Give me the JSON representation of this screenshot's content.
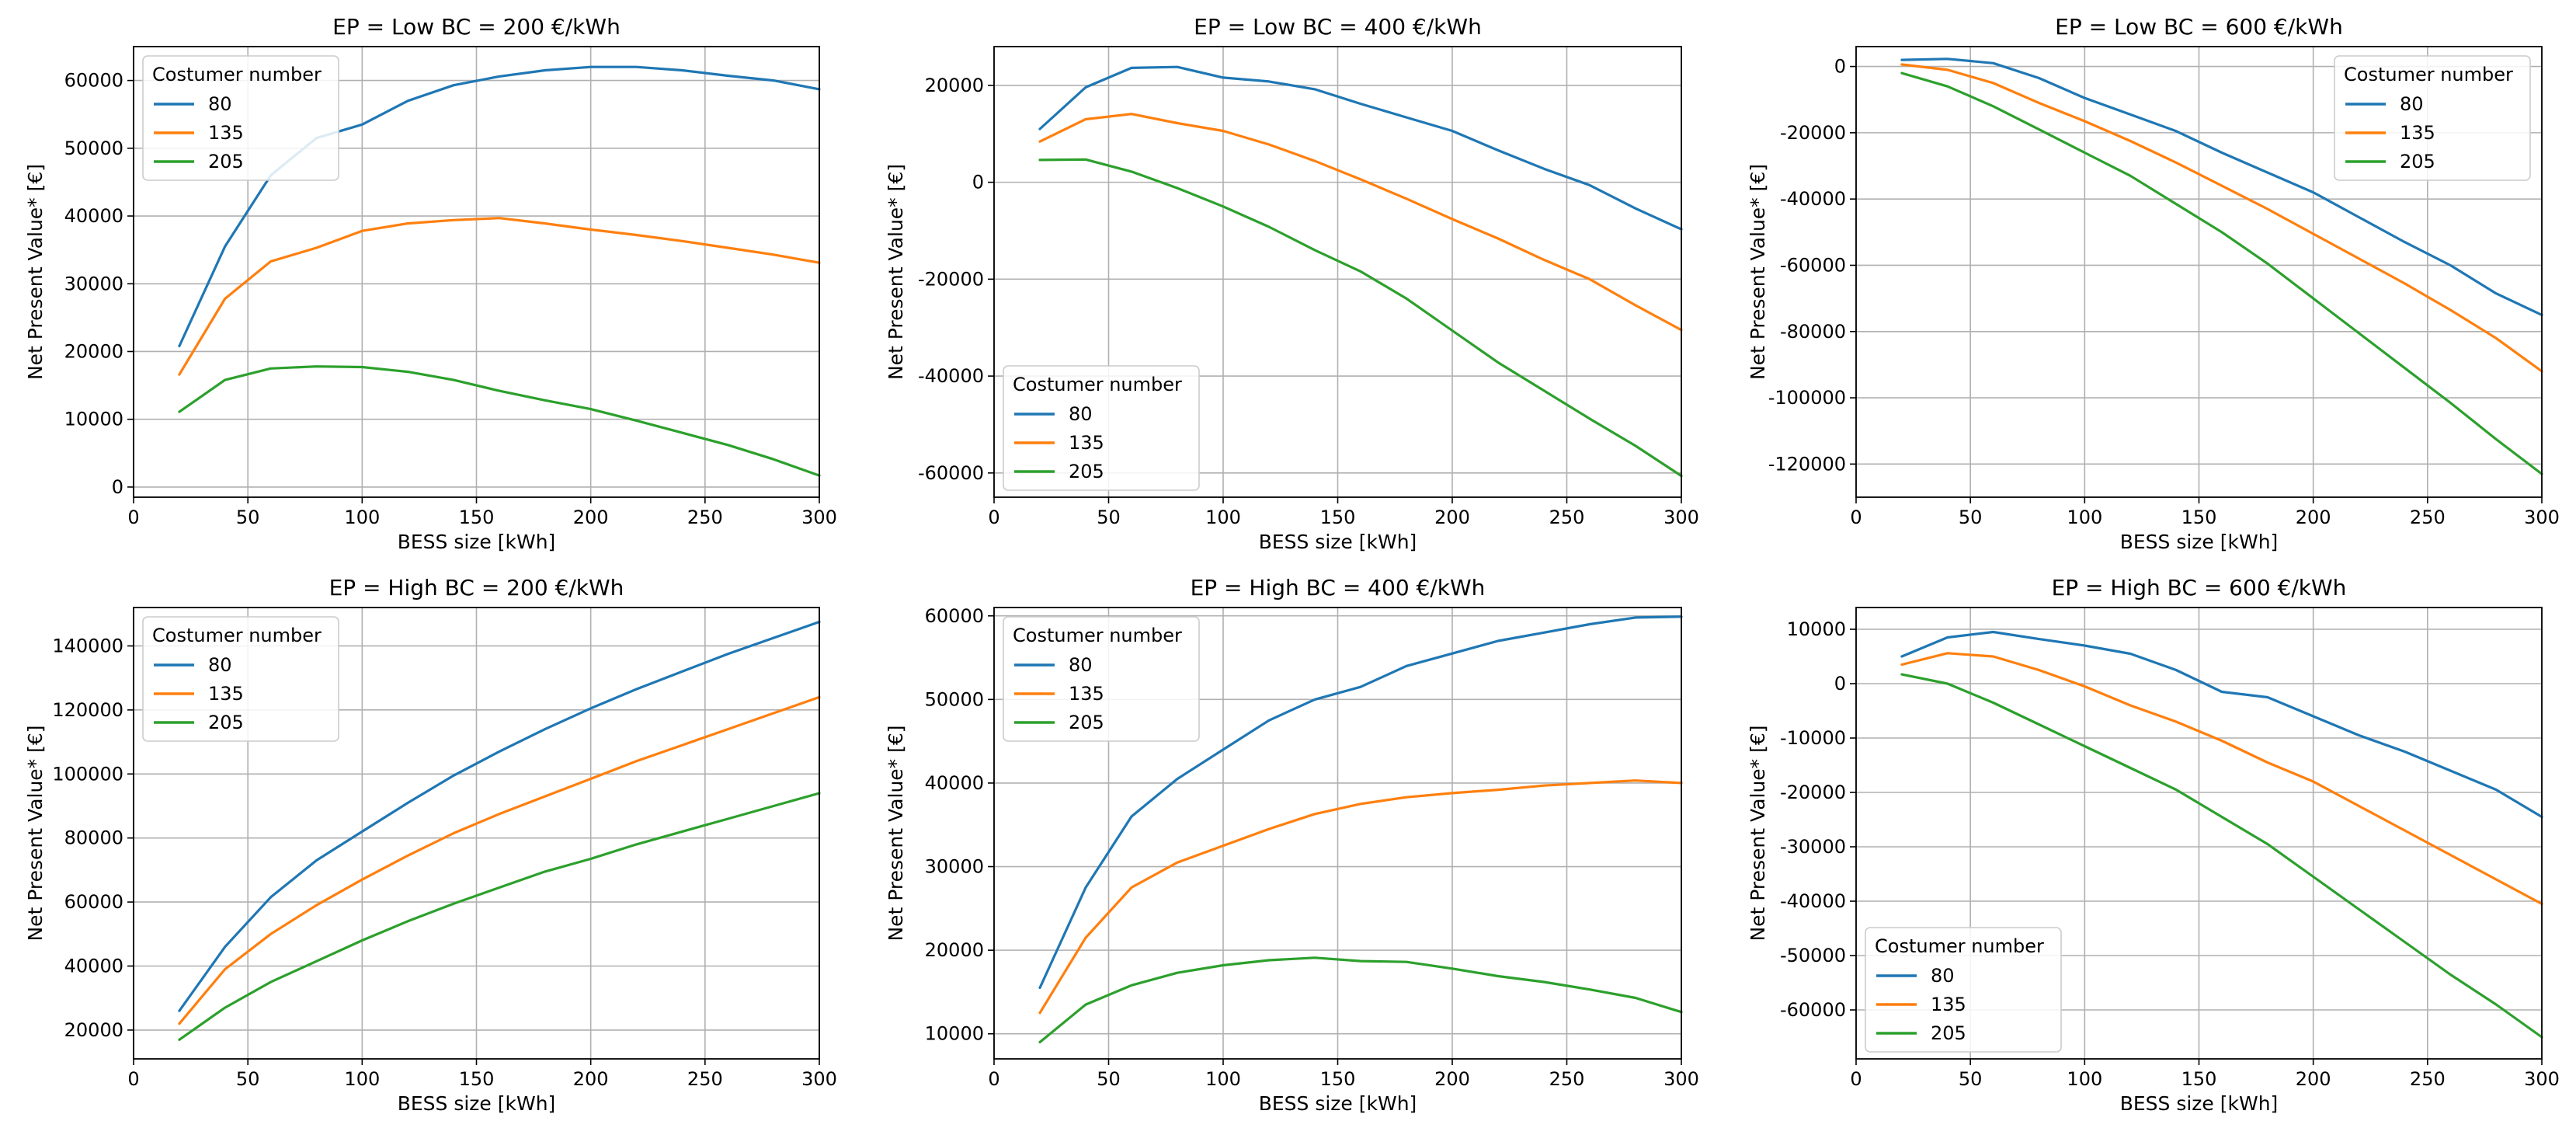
{
  "colors": {
    "80": "#1f77b4",
    "135": "#ff7f0e",
    "205": "#2ca02c"
  },
  "chart_data": [
    {
      "type": "line",
      "title": "EP = Low BC = 200 €/kWh",
      "xlabel": "BESS size [kWh]",
      "ylabel": "Net Present Value* [€]",
      "xlim": [
        0,
        300
      ],
      "ylim": [
        -1500,
        65000
      ],
      "xticks": [
        0,
        50,
        100,
        150,
        200,
        250,
        300
      ],
      "yticks": [
        0,
        10000,
        20000,
        30000,
        40000,
        50000,
        60000
      ],
      "grid": true,
      "legend": {
        "title": "Costumer number",
        "loc": "upper-left"
      },
      "x": [
        20,
        40,
        60,
        80,
        100,
        120,
        140,
        160,
        180,
        200,
        220,
        240,
        260,
        280,
        300
      ],
      "series": [
        {
          "name": "80",
          "values": [
            20800,
            35500,
            46000,
            51500,
            53500,
            57000,
            59300,
            60600,
            61500,
            62000,
            62000,
            61500,
            60700,
            60000,
            58700
          ]
        },
        {
          "name": "135",
          "values": [
            16600,
            27800,
            33300,
            35300,
            37800,
            38900,
            39400,
            39700,
            38900,
            38000,
            37200,
            36300,
            35300,
            34300,
            33100
          ]
        },
        {
          "name": "205",
          "values": [
            11100,
            15800,
            17500,
            17800,
            17700,
            17000,
            15800,
            14200,
            12800,
            11500,
            9800,
            8000,
            6200,
            4100,
            1700
          ]
        }
      ]
    },
    {
      "type": "line",
      "title": "EP = Low BC = 400 €/kWh",
      "xlabel": "BESS size [kWh]",
      "ylabel": "Net Present Value* [€]",
      "xlim": [
        0,
        300
      ],
      "ylim": [
        -65000,
        28000
      ],
      "xticks": [
        0,
        50,
        100,
        150,
        200,
        250,
        300
      ],
      "yticks": [
        -60000,
        -40000,
        -20000,
        0,
        20000
      ],
      "grid": true,
      "legend": {
        "title": "Costumer number",
        "loc": "lower-left"
      },
      "x": [
        20,
        40,
        60,
        80,
        100,
        120,
        140,
        160,
        180,
        200,
        220,
        240,
        260,
        280,
        300
      ],
      "series": [
        {
          "name": "80",
          "values": [
            11000,
            19600,
            23600,
            23800,
            21600,
            20800,
            19200,
            16200,
            13400,
            10600,
            6600,
            2800,
            -600,
            -5400,
            -9700
          ]
        },
        {
          "name": "135",
          "values": [
            8400,
            13000,
            14100,
            12200,
            10600,
            7800,
            4400,
            600,
            -3400,
            -7600,
            -11600,
            -16000,
            -20000,
            -25400,
            -30500
          ]
        },
        {
          "name": "205",
          "values": [
            4600,
            4700,
            2200,
            -1200,
            -5000,
            -9200,
            -14000,
            -18400,
            -24000,
            -30600,
            -37200,
            -43000,
            -48800,
            -54400,
            -60600
          ]
        }
      ]
    },
    {
      "type": "line",
      "title": "EP = Low BC = 600 €/kWh",
      "xlabel": "BESS size [kWh]",
      "ylabel": "Net Present Value* [€]",
      "xlim": [
        0,
        300
      ],
      "ylim": [
        -130000,
        6000
      ],
      "xticks": [
        0,
        50,
        100,
        150,
        200,
        250,
        300
      ],
      "yticks": [
        -120000,
        -100000,
        -80000,
        -60000,
        -40000,
        -20000,
        0
      ],
      "grid": true,
      "legend": {
        "title": "Costumer number",
        "loc": "upper-right"
      },
      "x": [
        20,
        40,
        60,
        80,
        100,
        120,
        140,
        160,
        180,
        200,
        220,
        240,
        260,
        280,
        300
      ],
      "series": [
        {
          "name": "80",
          "values": [
            2000,
            2300,
            1000,
            -3500,
            -9500,
            -14500,
            -19500,
            -26000,
            -32000,
            -38000,
            -45500,
            -53000,
            -60000,
            -68500,
            -75000
          ]
        },
        {
          "name": "135",
          "values": [
            600,
            -1000,
            -5000,
            -11000,
            -16500,
            -22500,
            -29000,
            -36000,
            -43000,
            -50500,
            -58000,
            -65500,
            -73500,
            -82000,
            -92000
          ]
        },
        {
          "name": "205",
          "values": [
            -2000,
            -6000,
            -12000,
            -19000,
            -26000,
            -33000,
            -41500,
            -50000,
            -59500,
            -70000,
            -80500,
            -91000,
            -101500,
            -112500,
            -123000
          ]
        }
      ]
    },
    {
      "type": "line",
      "title": "EP = High BC = 200 €/kWh",
      "xlabel": "BESS size [kWh]",
      "ylabel": "Net Present Value* [€]",
      "xlim": [
        0,
        300
      ],
      "ylim": [
        11000,
        152000
      ],
      "xticks": [
        0,
        50,
        100,
        150,
        200,
        250,
        300
      ],
      "yticks": [
        20000,
        40000,
        60000,
        80000,
        100000,
        120000,
        140000
      ],
      "grid": true,
      "legend": {
        "title": "Costumer number",
        "loc": "upper-left"
      },
      "x": [
        20,
        40,
        60,
        80,
        100,
        120,
        140,
        160,
        180,
        200,
        220,
        240,
        260,
        280,
        300
      ],
      "series": [
        {
          "name": "80",
          "values": [
            26000,
            46000,
            61500,
            73000,
            82000,
            91000,
            99500,
            107000,
            114000,
            120500,
            126500,
            132000,
            137500,
            142500,
            147500
          ]
        },
        {
          "name": "135",
          "values": [
            22000,
            39000,
            50000,
            59000,
            67000,
            74500,
            81500,
            87500,
            93000,
            98500,
            104000,
            109000,
            114000,
            119000,
            124000
          ]
        },
        {
          "name": "205",
          "values": [
            17000,
            27000,
            35000,
            41500,
            48000,
            54000,
            59500,
            64500,
            69500,
            73500,
            78000,
            82000,
            86000,
            90000,
            94000
          ]
        }
      ]
    },
    {
      "type": "line",
      "title": "EP = High BC = 400 €/kWh",
      "xlabel": "BESS size [kWh]",
      "ylabel": "Net Present Value* [€]",
      "xlim": [
        0,
        300
      ],
      "ylim": [
        7000,
        61000
      ],
      "xticks": [
        0,
        50,
        100,
        150,
        200,
        250,
        300
      ],
      "yticks": [
        10000,
        20000,
        30000,
        40000,
        50000,
        60000
      ],
      "grid": true,
      "legend": {
        "title": "Costumer number",
        "loc": "upper-left"
      },
      "x": [
        20,
        40,
        60,
        80,
        100,
        120,
        140,
        160,
        180,
        200,
        220,
        240,
        260,
        280,
        300
      ],
      "series": [
        {
          "name": "80",
          "values": [
            15500,
            27500,
            36000,
            40500,
            44000,
            47500,
            50000,
            51500,
            54000,
            55500,
            57000,
            58000,
            59000,
            59800,
            59900
          ]
        },
        {
          "name": "135",
          "values": [
            12500,
            21500,
            27500,
            30500,
            32500,
            34500,
            36300,
            37500,
            38300,
            38800,
            39200,
            39700,
            40000,
            40300,
            40000
          ]
        },
        {
          "name": "205",
          "values": [
            9000,
            13500,
            15800,
            17300,
            18200,
            18800,
            19100,
            18700,
            18600,
            17800,
            16900,
            16200,
            15300,
            14300,
            12600
          ]
        }
      ]
    },
    {
      "type": "line",
      "title": "EP = High BC = 600 €/kWh",
      "xlabel": "BESS size [kWh]",
      "ylabel": "Net Present Value* [€]",
      "xlim": [
        0,
        300
      ],
      "ylim": [
        -69000,
        14000
      ],
      "xticks": [
        0,
        50,
        100,
        150,
        200,
        250,
        300
      ],
      "yticks": [
        -60000,
        -50000,
        -40000,
        -30000,
        -20000,
        -10000,
        0,
        10000
      ],
      "grid": true,
      "legend": {
        "title": "Costumer number",
        "loc": "lower-left"
      },
      "x": [
        20,
        40,
        60,
        80,
        100,
        120,
        140,
        160,
        180,
        200,
        220,
        240,
        260,
        280,
        300
      ],
      "series": [
        {
          "name": "80",
          "values": [
            5000,
            8500,
            9500,
            8200,
            7000,
            5500,
            2500,
            -1500,
            -2500,
            -6000,
            -9500,
            -12500,
            -16000,
            -19500,
            -24500
          ]
        },
        {
          "name": "135",
          "values": [
            3500,
            5600,
            5000,
            2500,
            -500,
            -4000,
            -7000,
            -10500,
            -14500,
            -18000,
            -22500,
            -27000,
            -31500,
            -36000,
            -40500
          ]
        },
        {
          "name": "205",
          "values": [
            1700,
            0,
            -3500,
            -7500,
            -11500,
            -15500,
            -19500,
            -24500,
            -29500,
            -35500,
            -41500,
            -47500,
            -53500,
            -59000,
            -65000
          ]
        }
      ]
    }
  ]
}
